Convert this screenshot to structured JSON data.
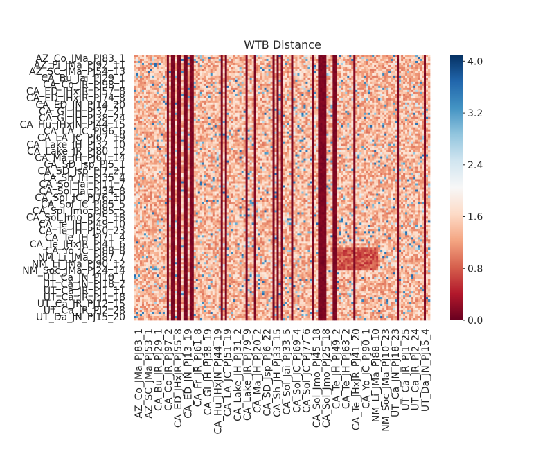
{
  "chart_data": {
    "type": "heatmap",
    "title": "WTB Distance",
    "xlabel": "",
    "ylabel": "",
    "row_labels": [
      "AZ_Co_JMa_PJ83_1",
      "AZ_Pi_JMa_PJ92_11",
      "AZ_SC_JMa_PJ54_13",
      "CA_Bu_Jai_PJ29_1",
      "CA_Co_JR_PJ98_1",
      "CA_ED_JHxJR_PJ57_8",
      "CA_ED_JHxJR_PJ74_8",
      "CA_ED_JN_PJ14_20",
      "CA_GI_JH_PJ37_21",
      "CA_GI_JH_PJ38_24",
      "CA_Hu_JHxJN_PJ44_15",
      "CA_LA_JC_PJ96_6",
      "CA_LA_JC_PJ67_19",
      "CA_Lake_JH_PJ32_10",
      "CA_Lake_JR_PJ80_12",
      "CA_Ma_JH_PJ61_14",
      "CA_SD_Jsp_PJ5_1",
      "CA_SD_Jsp_PJ7_21",
      "CA_Sh_JH_PJ35_4",
      "CA_Sol_Jai_PJ11_7",
      "CA_Sol_Jai_PJ34_8",
      "CA_Sol_JC_PJ76_10",
      "CA_Sol_JC_PJ85_5",
      "CA_Sol_Jmo_PJ85_5",
      "CA_Sol_Jmo_PJ25_18",
      "CA_Te_JH_PJ49_10",
      "CA_Te_JH_PJ50_23",
      "CA_Te_JH_PJ71_4",
      "CA_Te_JHxJR_PJ41_6",
      "CA_Yo_JC_PJ88_8",
      "NM_Li_JMa_PJ87_7",
      "NM_Li_JMa_PJ90_12",
      "NM_Soc_JMa_PJ24_14",
      "UT_Ca_JN_PJ10_1",
      "UT_Ca_JN_PJ18_2",
      "UT_Ca_JR_PJ1_11",
      "UT_Ca_JR_PJ1_18",
      "UT_Ca_JR_PJ12_15",
      "UT_Ca_JR_PJ2_28",
      "UT_Da_JN_PJ15_20"
    ],
    "col_labels": [
      "AZ_Co_JMa_PJ83_1",
      "AZ_SC_JMa_PJ53_1",
      "CA_Bu_JR_PJ29_1",
      "CA_Co_JR_PJ97_2",
      "CA_ED_JHxJR_PJ55_8",
      "CA_ED_JN_PJ13_19",
      "CA_Fr_JR_PJ61_8",
      "CA_GI_JH_PJ38_19",
      "CA_Hu_JHxJN_PJ44_19",
      "CA_LA_JC_PJ51_19",
      "CA_Lake_JH_PJ31_2",
      "CA_Lake_JR_PJ79_9",
      "CA_Ma_JH_PJ20_2",
      "CA_SD_Jsp_PJ6_22",
      "CA_Sh_JH_PJ33_15",
      "CA_Sol_Jai_PJ33_5",
      "CA_Sol_JC_PJ69_4",
      "CA_Sol_JC_PJ77_6",
      "CA_Sol_Jmo_PJ45_18",
      "CA_Sol_Jmo_PJ25_18",
      "CA_Te_JH_PJ49_2",
      "CA_Te_JH_PJ63_2",
      "CA_Te_JHxJR_PJ41_20",
      "CA_Yo_JC_PJ90_1",
      "NM_Li_JMa_PJ88_10",
      "NM_Soc_JMa_PJ10_23",
      "UT_Ca_JN_PJ18_23",
      "UT_Ca_JR_PJ1_25",
      "UT_Ca_JR_PJ2_24",
      "UT_Da_JN_PJ15_4"
    ],
    "colorbar": {
      "ticks": [
        "0.0",
        "0.8",
        "1.6",
        "2.4",
        "3.2",
        "4.0"
      ],
      "min": 0.0,
      "max": 4.1,
      "colormap": "RdBu",
      "colors": [
        "#67001f",
        "#b2182b",
        "#d6604d",
        "#f4a582",
        "#fddbc7",
        "#f7f7f7",
        "#d1e5f0",
        "#92c5de",
        "#4393c3",
        "#2166ac",
        "#053061"
      ]
    },
    "summary": {
      "typical_value": 1.4,
      "dark_column_value": 0.05,
      "blue_speckle_value": 3.0
    },
    "grid": false,
    "legend": "colorbar-right"
  }
}
